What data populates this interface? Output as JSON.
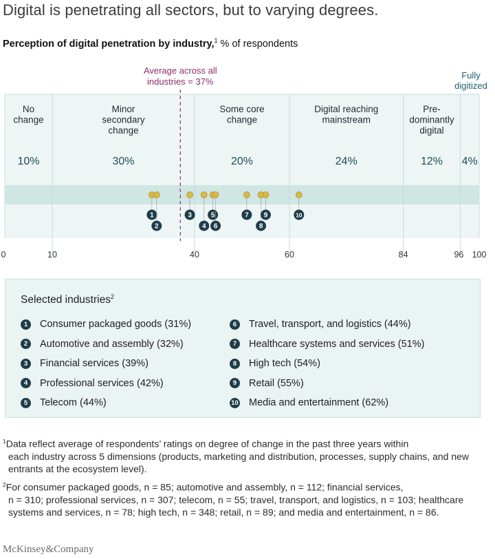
{
  "title": "Digital is penetrating all sectors, but to varying degrees.",
  "subtitle": {
    "bold": "Perception of digital penetration by industry,",
    "sup": "1",
    "rest": " % of respondents"
  },
  "chart_data": {
    "type": "scatter",
    "xlim": [
      0,
      100
    ],
    "ticks": [
      "0",
      "10",
      "40",
      "60",
      "84",
      "96",
      "100"
    ],
    "tick_values": [
      0,
      10,
      40,
      60,
      84,
      96,
      100
    ],
    "average": {
      "value": 37,
      "label_line1": "Average across all",
      "label_line2": "industries = 37%"
    },
    "fully_digitized_label": [
      "Fully",
      "digitized"
    ],
    "bands": [
      {
        "from": 0,
        "to": 10,
        "label": [
          "No",
          "change"
        ],
        "pct": "10%"
      },
      {
        "from": 10,
        "to": 40,
        "label": [
          "Minor",
          "secondary",
          "change"
        ],
        "pct": "30%"
      },
      {
        "from": 40,
        "to": 60,
        "label": [
          "Some core",
          "change"
        ],
        "pct": "20%"
      },
      {
        "from": 60,
        "to": 84,
        "label": [
          "Digital reaching",
          "mainstream"
        ],
        "pct": "24%"
      },
      {
        "from": 84,
        "to": 96,
        "label": [
          "Pre-",
          "dominantly",
          "digital"
        ],
        "pct": "12%"
      },
      {
        "from": 96,
        "to": 100,
        "label": [],
        "pct": "4%"
      }
    ],
    "points": [
      {
        "num": "1",
        "value": 31,
        "row": 0
      },
      {
        "num": "2",
        "value": 32,
        "row": 1
      },
      {
        "num": "3",
        "value": 39,
        "row": 0
      },
      {
        "num": "4",
        "value": 42,
        "row": 1
      },
      {
        "num": "5",
        "value": 44,
        "row": 0
      },
      {
        "num": "6",
        "value": 44,
        "row": 1
      },
      {
        "num": "7",
        "value": 51,
        "row": 0
      },
      {
        "num": "8",
        "value": 54,
        "row": 1
      },
      {
        "num": "9",
        "value": 55,
        "row": 0
      },
      {
        "num": "10",
        "value": 62,
        "row": 0
      }
    ]
  },
  "legend": {
    "title": "Selected industries",
    "title_sup": "2",
    "items": [
      {
        "num": "1",
        "label": "Consumer packaged goods (31%)"
      },
      {
        "num": "2",
        "label": "Automotive and assembly (32%)"
      },
      {
        "num": "3",
        "label": "Financial services (39%)"
      },
      {
        "num": "4",
        "label": "Professional services (42%)"
      },
      {
        "num": "5",
        "label": "Telecom (44%)"
      },
      {
        "num": "6",
        "label": "Travel, transport, and logistics (44%)"
      },
      {
        "num": "7",
        "label": "Healthcare systems and services (51%)"
      },
      {
        "num": "8",
        "label": "High tech (54%)"
      },
      {
        "num": "9",
        "label": "Retail (55%)"
      },
      {
        "num": "10",
        "label": "Media and entertainment (62%)"
      }
    ]
  },
  "footnotes": {
    "fn1_sup": "1",
    "fn1_first": "Data reflect average of respondents’ ratings on degree of change in the past three years within",
    "fn1_rest": "each industry across 5 dimensions (products, marketing and distribution, processes, supply chains, and new entrants at the ecosystem level).",
    "fn2_sup": "2",
    "fn2_first": "For consumer packaged goods, n = 85; automotive and assembly, n = 112; financial services,",
    "fn2_rest": "n = 310; professional services, n = 307; telecom, n = 55; travel, transport, and logistics, n = 103; healthcare systems and services, n = 78; high tech, n = 348; retail, n = 89; and media and entertainment, n = 86."
  },
  "logo": "McKinsey&Company",
  "colors": {
    "band": "#eef6f5",
    "strip": "#cfe6e4",
    "marker": "#d9b84a",
    "badge": "#1e3d4a",
    "average": "#8b2f6f",
    "fully": "#1f5f6d"
  }
}
